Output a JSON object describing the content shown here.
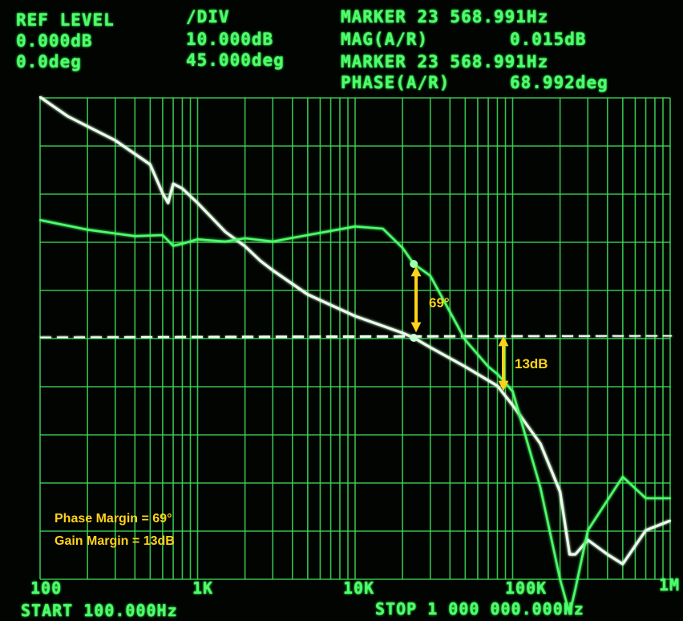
{
  "header": {
    "ref_level_title": "REF LEVEL",
    "ref_level_mag": "0.000dB",
    "ref_level_phase": "0.0deg",
    "div_title": "/DIV",
    "div_mag": "10.000dB",
    "div_phase": "45.000deg",
    "marker1": "MARKER 23 568.991Hz",
    "mag_label": "MAG(A/R)",
    "mag_value": "0.015dB",
    "marker2": "MARKER 23 568.991Hz",
    "phase_label": "PHASE(A/R)",
    "phase_value": "68.992deg"
  },
  "footer": {
    "start": "START 100.000Hz",
    "stop": "STOP 1 000 000.000Hz"
  },
  "annotations": {
    "phase_margin_arrow_label": "69°",
    "gain_margin_arrow_label": "13dB",
    "phase_margin_text": "Phase Margin = 69°",
    "gain_margin_text": "Gain Margin = 13dB"
  },
  "colors": {
    "trace": "#4dff6a",
    "trace_bright": "#e8ffe8",
    "annotation": "#ffd21a",
    "background": "#010401"
  },
  "chart_data": {
    "type": "line",
    "x_scale": "log",
    "xlim": [
      100,
      1000000
    ],
    "x_tick_labels": [
      "100",
      "1K",
      "10K",
      "100K",
      "1M"
    ],
    "x_tick_values": [
      100,
      1000,
      10000,
      100000,
      1000000
    ],
    "grid": true,
    "magnitude_ref_db": 0,
    "magnitude_db_per_div": 10,
    "phase_ref_deg": 0,
    "phase_deg_per_div": 45,
    "series": [
      {
        "name": "MAG(A/R)",
        "unit": "dB",
        "x": [
          100,
          150,
          300,
          500,
          600,
          650,
          700,
          800,
          1000,
          1500,
          2000,
          2500,
          3000,
          5000,
          10000,
          20000,
          23569,
          30000,
          50000,
          80000,
          100000,
          150000,
          200000,
          230000,
          250000,
          300000,
          400000,
          500000,
          700000,
          1000000
        ],
        "y": [
          50,
          46,
          41,
          36,
          30,
          28,
          32,
          31,
          28,
          22,
          19,
          16,
          14,
          9,
          4.5,
          1,
          0,
          -2,
          -6,
          -10,
          -14,
          -22,
          -32,
          -45,
          -45,
          -42,
          -45,
          -47,
          -40,
          -38
        ]
      },
      {
        "name": "PHASE(A/R)",
        "unit": "deg",
        "x": [
          100,
          200,
          400,
          600,
          700,
          800,
          1000,
          1500,
          2000,
          3000,
          5000,
          10000,
          15000,
          20000,
          23569,
          30000,
          50000,
          70000,
          80000,
          100000,
          150000,
          200000,
          230000,
          250000,
          300000,
          500000,
          700000,
          1000000
        ],
        "y": [
          110,
          101,
          95,
          96,
          86,
          88,
          92,
          90,
          93,
          90,
          96,
          104,
          102,
          84,
          69,
          58,
          -2,
          -27,
          -34,
          -50,
          -140,
          -226,
          -258,
          -235,
          -180,
          -130,
          -150,
          -150
        ]
      }
    ]
  }
}
